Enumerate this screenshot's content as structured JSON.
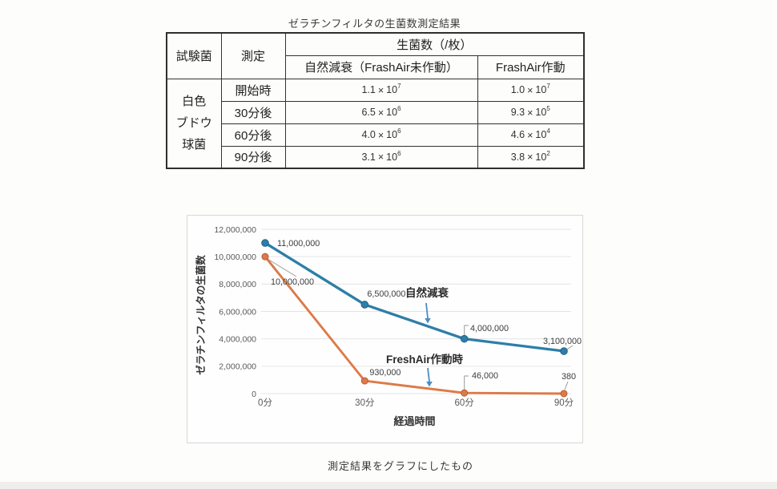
{
  "doc": {
    "table_title": "ゼラチンフィルタの生菌数測定結果",
    "caption": "測定結果をグラフにしたもの"
  },
  "table": {
    "col_test_bacteria": "試験菌",
    "col_measurement": "測定",
    "col_viable_count": "生菌数（/枚）",
    "col_natural_decay": "自然減衰（FrashAir未作動）",
    "col_freshair_on": "FrashAir作動",
    "bacteria_lines": [
      "白色",
      "ブドウ",
      "球菌"
    ],
    "times_sign": "×",
    "base_ten": "10",
    "rows": [
      {
        "time": "開始時",
        "natural_m": "1.1",
        "natural_e": "7",
        "fresh_m": "1.0",
        "fresh_e": "7"
      },
      {
        "time": "30分後",
        "natural_m": "6.5",
        "natural_e": "6",
        "fresh_m": "9.3",
        "fresh_e": "5"
      },
      {
        "time": "60分後",
        "natural_m": "4.0",
        "natural_e": "6",
        "fresh_m": "4.6",
        "fresh_e": "4"
      },
      {
        "time": "90分後",
        "natural_m": "3.1",
        "natural_e": "6",
        "fresh_m": "3.8",
        "fresh_e": "2"
      }
    ]
  },
  "chart_data": {
    "type": "line",
    "title": "",
    "categories": [
      "0分",
      "30分",
      "60分",
      "90分"
    ],
    "x_minutes": [
      0,
      30,
      60,
      90
    ],
    "xlabel": "経過時間",
    "ylabel": "ゼラチンフィルタの生菌数",
    "ylim": [
      0,
      12000000
    ],
    "ytick_step": 2000000,
    "ytick_labels": [
      "0",
      "2,000,000",
      "4,000,000",
      "6,000,000",
      "8,000,000",
      "10,000,000",
      "12,000,000"
    ],
    "grid": true,
    "legend": "inline-annotations",
    "colors": {
      "grid": "#e4e4e4",
      "axis_text": "#595959",
      "label_text": "#3d3d3d",
      "leader": "#9a9a9a",
      "arrow": "#4a8fc0"
    },
    "series": [
      {
        "name": "自然減衰",
        "color": "#2e7ea8",
        "marker_edge": "#1f6288",
        "values": [
          11000000,
          6500000,
          4000000,
          3100000
        ],
        "labels": [
          "11,000,000",
          "6,500,000",
          "4,000,000",
          "3,100,000"
        ]
      },
      {
        "name": "FreshAir作動時",
        "color": "#dd7a49",
        "marker_edge": "#b85c33",
        "values": [
          10000000,
          930000,
          46000,
          380
        ],
        "labels": [
          "10,000,000",
          "930,000",
          "46,000",
          "380"
        ]
      }
    ]
  }
}
